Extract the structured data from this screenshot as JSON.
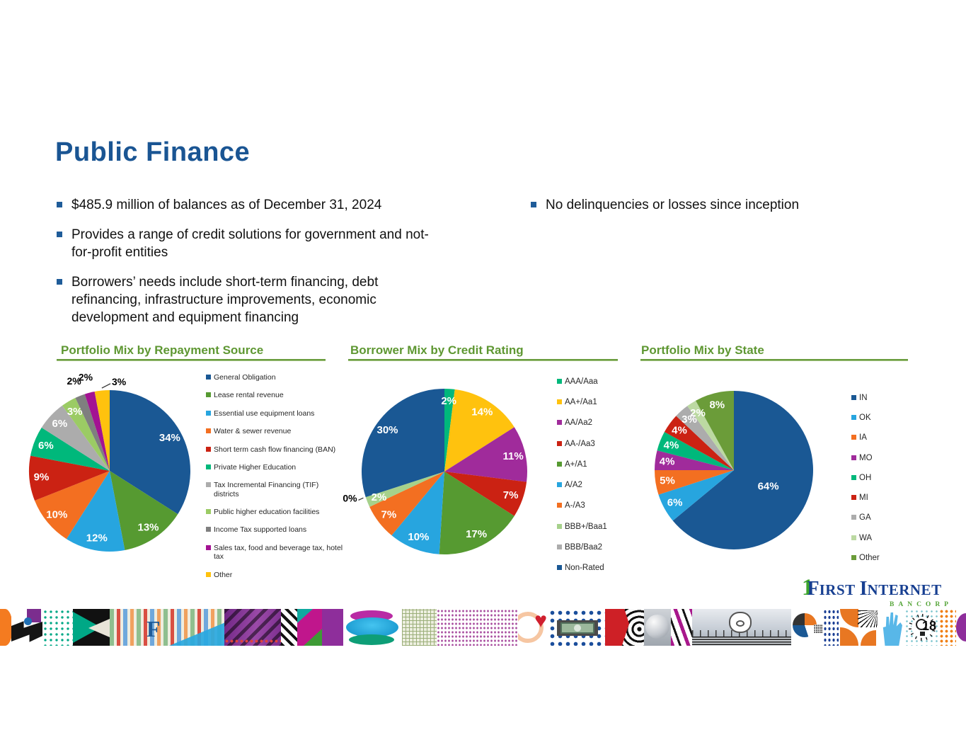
{
  "header": {
    "title": "Public Finance"
  },
  "bullets_left": [
    "$485.9 million of balances as of December 31, 2024",
    "Provides a range of credit solutions for government and not-for-profit entities",
    "Borrowers’ needs include short-term financing, debt refinancing, infrastructure improvements, economic development and equipment financing"
  ],
  "bullets_right": [
    "No delinquencies or losses since inception"
  ],
  "colors": {
    "title_blue": "#1A5593",
    "bullet_blue": "#1F5C99",
    "heading_green": "#5E9732",
    "logo_navy": "#173F91",
    "logo_green": "#56A539"
  },
  "logo": {
    "mark": "1",
    "word1_initial": "F",
    "word1_rest": "IRST",
    "word2_initial": "I",
    "word2_rest": "NTERNET",
    "sub": "BANCORP"
  },
  "icons": {
    "heart": "♥",
    "letter_f": "F"
  },
  "page": {
    "number": "18"
  },
  "chart_data": [
    {
      "type": "pie",
      "title": "Portfolio Mix by Repayment Source",
      "legend_position": "right",
      "slices": [
        {
          "label": "General Obligation",
          "value": 34,
          "color": "#1A5894"
        },
        {
          "label": "Lease rental revenue",
          "value": 13,
          "color": "#569A31"
        },
        {
          "label": "Essential use equipment loans",
          "value": 12,
          "color": "#27A5DF"
        },
        {
          "label": "Water & sewer revenue",
          "value": 10,
          "color": "#F36F21"
        },
        {
          "label": "Short term cash flow financing (BAN)",
          "value": 9,
          "color": "#CB2213"
        },
        {
          "label": "Private Higher Education",
          "value": 6,
          "color": "#00B87B"
        },
        {
          "label": "Tax Incremental Financing (TIF) districts",
          "value": 6,
          "color": "#ACACAC"
        },
        {
          "label": "Public higher education facilities",
          "value": 3,
          "color": "#9BCB64"
        },
        {
          "label": "Income Tax supported loans",
          "value": 2,
          "color": "#7F7F7F",
          "label_pos": "out"
        },
        {
          "label": "Sales tax, food and beverage tax, hotel tax",
          "value": 2,
          "color": "#A31292",
          "label_pos": "out"
        },
        {
          "label": "Other",
          "value": 3,
          "color": "#FFC20E",
          "label_pos": "out",
          "leader": true,
          "label_dx": 26,
          "label_dy": 10
        }
      ]
    },
    {
      "type": "pie",
      "title": "Borrower Mix by Credit Rating",
      "legend_position": "right",
      "slices": [
        {
          "label": "AAA/Aaa",
          "value": 2,
          "color": "#00B87B"
        },
        {
          "label": "AA+/Aa1",
          "value": 14,
          "color": "#FFC20E"
        },
        {
          "label": "AA/Aa2",
          "value": 11,
          "color": "#A02B9B"
        },
        {
          "label": "AA-/Aa3",
          "value": 7,
          "color": "#CB2213"
        },
        {
          "label": "A+/A1",
          "value": 17,
          "color": "#569A31"
        },
        {
          "label": "A/A2",
          "value": 10,
          "color": "#27A5DF"
        },
        {
          "label": "A-/A3",
          "value": 7,
          "color": "#F36F21"
        },
        {
          "label": "BBB+/Baa1",
          "value": 2,
          "color": "#A6D18B"
        },
        {
          "label": "BBB/Baa2",
          "value": 0,
          "color": "#ACACAC",
          "label_pos": "out",
          "leader": true,
          "label_dy": -6
        },
        {
          "label": "Non-Rated",
          "value": 30,
          "color": "#1A5894"
        }
      ]
    },
    {
      "type": "pie",
      "title": "Portfolio Mix by State",
      "legend_position": "right",
      "slices": [
        {
          "label": "IN",
          "value": 64,
          "color": "#1A5894",
          "lr": 0.48
        },
        {
          "label": "OK",
          "value": 6,
          "color": "#27A5DF"
        },
        {
          "label": "IA",
          "value": 5,
          "color": "#F36F21"
        },
        {
          "label": "MO",
          "value": 4,
          "color": "#A02B9B"
        },
        {
          "label": "OH",
          "value": 4,
          "color": "#00B87B"
        },
        {
          "label": "MI",
          "value": 4,
          "color": "#CB2213"
        },
        {
          "label": "GA",
          "value": 3,
          "color": "#ACACAC"
        },
        {
          "label": "WA",
          "value": 2,
          "color": "#BCD9A2"
        },
        {
          "label": "Other",
          "value": 8,
          "color": "#6B9C39"
        }
      ]
    }
  ]
}
